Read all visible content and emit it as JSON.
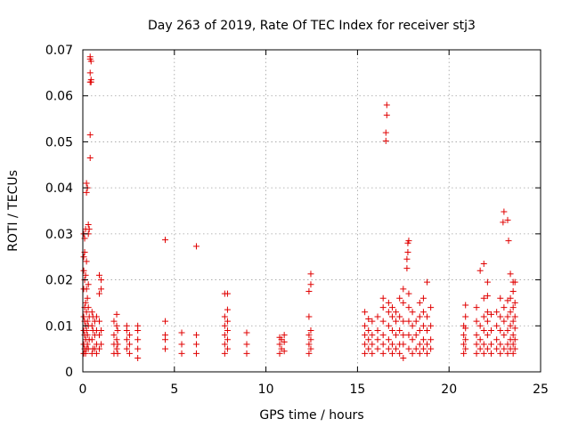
{
  "chart_data": {
    "type": "scatter",
    "title": "Day 263 of 2019, Rate Of TEC Index for receiver stj3",
    "xlabel": "GPS time / hours",
    "ylabel": "ROTI / TECUs",
    "xlim": [
      0,
      25
    ],
    "ylim": [
      0,
      0.07
    ],
    "grid": true,
    "marker": "+",
    "color": "#e00000",
    "x_ticks": [
      0,
      5,
      10,
      15,
      20,
      25
    ],
    "x_tick_labels": [
      "0",
      "5",
      "10",
      "15",
      "20",
      "25"
    ],
    "y_ticks": [
      0,
      0.01,
      0.02,
      0.03,
      0.04,
      0.05,
      0.06,
      0.07
    ],
    "y_tick_labels": [
      "0",
      "0.01",
      "0.02",
      "0.03",
      "0.04",
      "0.05",
      "0.06",
      "0.07"
    ],
    "series": [
      {
        "name": "ROTI",
        "points": [
          [
            0.05,
            0.004
          ],
          [
            0.05,
            0.006
          ],
          [
            0.05,
            0.009
          ],
          [
            0.05,
            0.012
          ],
          [
            0.05,
            0.018
          ],
          [
            0.05,
            0.022
          ],
          [
            0.05,
            0.025
          ],
          [
            0.05,
            0.03
          ],
          [
            0.1,
            0.005
          ],
          [
            0.1,
            0.008
          ],
          [
            0.1,
            0.011
          ],
          [
            0.1,
            0.014
          ],
          [
            0.1,
            0.02
          ],
          [
            0.1,
            0.026
          ],
          [
            0.1,
            0.029
          ],
          [
            0.15,
            0.004
          ],
          [
            0.15,
            0.007
          ],
          [
            0.15,
            0.01
          ],
          [
            0.15,
            0.015
          ],
          [
            0.15,
            0.021
          ],
          [
            0.15,
            0.031
          ],
          [
            0.2,
            0.005
          ],
          [
            0.2,
            0.009
          ],
          [
            0.2,
            0.013
          ],
          [
            0.2,
            0.018
          ],
          [
            0.2,
            0.024
          ],
          [
            0.2,
            0.039
          ],
          [
            0.2,
            0.041
          ],
          [
            0.25,
            0.006
          ],
          [
            0.25,
            0.008
          ],
          [
            0.25,
            0.011
          ],
          [
            0.25,
            0.016
          ],
          [
            0.25,
            0.04
          ],
          [
            0.3,
            0.005
          ],
          [
            0.3,
            0.01
          ],
          [
            0.3,
            0.014
          ],
          [
            0.3,
            0.019
          ],
          [
            0.3,
            0.03
          ],
          [
            0.3,
            0.032
          ],
          [
            0.35,
            0.007
          ],
          [
            0.35,
            0.012
          ],
          [
            0.35,
            0.031
          ],
          [
            0.4,
            0.0465
          ],
          [
            0.4,
            0.0515
          ],
          [
            0.4,
            0.063
          ],
          [
            0.4,
            0.065
          ],
          [
            0.4,
            0.068
          ],
          [
            0.4,
            0.0685
          ],
          [
            0.45,
            0.0635
          ],
          [
            0.45,
            0.0675
          ],
          [
            0.45,
            0.063
          ],
          [
            0.5,
            0.004
          ],
          [
            0.5,
            0.007
          ],
          [
            0.5,
            0.01
          ],
          [
            0.5,
            0.013
          ],
          [
            0.55,
            0.005
          ],
          [
            0.55,
            0.009
          ],
          [
            0.55,
            0.012
          ],
          [
            0.65,
            0.005
          ],
          [
            0.65,
            0.008
          ],
          [
            0.65,
            0.011
          ],
          [
            0.75,
            0.004
          ],
          [
            0.75,
            0.006
          ],
          [
            0.75,
            0.009
          ],
          [
            0.75,
            0.012
          ],
          [
            0.9,
            0.005
          ],
          [
            0.9,
            0.008
          ],
          [
            0.9,
            0.011
          ],
          [
            0.9,
            0.017
          ],
          [
            0.9,
            0.021
          ],
          [
            1.0,
            0.006
          ],
          [
            1.0,
            0.009
          ],
          [
            1.0,
            0.018
          ],
          [
            1.0,
            0.02
          ],
          [
            1.7,
            0.004
          ],
          [
            1.7,
            0.006
          ],
          [
            1.7,
            0.008
          ],
          [
            1.7,
            0.011
          ],
          [
            1.85,
            0.005
          ],
          [
            1.85,
            0.007
          ],
          [
            1.85,
            0.01
          ],
          [
            1.85,
            0.0125
          ],
          [
            1.9,
            0.004
          ],
          [
            1.9,
            0.006
          ],
          [
            1.9,
            0.009
          ],
          [
            2.4,
            0.005
          ],
          [
            2.4,
            0.007
          ],
          [
            2.4,
            0.009
          ],
          [
            2.4,
            0.01
          ],
          [
            2.55,
            0.004
          ],
          [
            2.55,
            0.006
          ],
          [
            2.55,
            0.008
          ],
          [
            3.0,
            0.003
          ],
          [
            3.0,
            0.005
          ],
          [
            3.0,
            0.007
          ],
          [
            3.0,
            0.009
          ],
          [
            3.0,
            0.01
          ],
          [
            4.5,
            0.005
          ],
          [
            4.5,
            0.007
          ],
          [
            4.5,
            0.008
          ],
          [
            4.5,
            0.011
          ],
          [
            4.5,
            0.0287
          ],
          [
            5.4,
            0.004
          ],
          [
            5.4,
            0.006
          ],
          [
            5.4,
            0.0085
          ],
          [
            6.2,
            0.004
          ],
          [
            6.2,
            0.006
          ],
          [
            6.2,
            0.008
          ],
          [
            6.2,
            0.0273
          ],
          [
            7.75,
            0.004
          ],
          [
            7.75,
            0.006
          ],
          [
            7.75,
            0.008
          ],
          [
            7.75,
            0.01
          ],
          [
            7.75,
            0.012
          ],
          [
            7.75,
            0.017
          ],
          [
            7.9,
            0.005
          ],
          [
            7.9,
            0.007
          ],
          [
            7.9,
            0.009
          ],
          [
            7.9,
            0.011
          ],
          [
            7.9,
            0.0135
          ],
          [
            7.9,
            0.017
          ],
          [
            8.95,
            0.004
          ],
          [
            8.95,
            0.006
          ],
          [
            8.95,
            0.0085
          ],
          [
            10.75,
            0.004
          ],
          [
            10.75,
            0.006
          ],
          [
            10.75,
            0.0075
          ],
          [
            10.85,
            0.005
          ],
          [
            10.85,
            0.007
          ],
          [
            11.0,
            0.0045
          ],
          [
            11.0,
            0.0065
          ],
          [
            11.0,
            0.008
          ],
          [
            12.35,
            0.004
          ],
          [
            12.35,
            0.006
          ],
          [
            12.35,
            0.008
          ],
          [
            12.35,
            0.012
          ],
          [
            12.35,
            0.0175
          ],
          [
            12.45,
            0.005
          ],
          [
            12.45,
            0.007
          ],
          [
            12.45,
            0.009
          ],
          [
            12.45,
            0.019
          ],
          [
            12.45,
            0.0213
          ],
          [
            15.4,
            0.004
          ],
          [
            15.4,
            0.006
          ],
          [
            15.4,
            0.008
          ],
          [
            15.4,
            0.01
          ],
          [
            15.4,
            0.013
          ],
          [
            15.6,
            0.005
          ],
          [
            15.6,
            0.007
          ],
          [
            15.6,
            0.009
          ],
          [
            15.6,
            0.0115
          ],
          [
            15.8,
            0.004
          ],
          [
            15.8,
            0.006
          ],
          [
            15.8,
            0.008
          ],
          [
            15.8,
            0.011
          ],
          [
            16.1,
            0.005
          ],
          [
            16.1,
            0.007
          ],
          [
            16.1,
            0.009
          ],
          [
            16.1,
            0.012
          ],
          [
            16.4,
            0.004
          ],
          [
            16.4,
            0.006
          ],
          [
            16.4,
            0.008
          ],
          [
            16.4,
            0.011
          ],
          [
            16.4,
            0.014
          ],
          [
            16.4,
            0.016
          ],
          [
            16.55,
            0.0502
          ],
          [
            16.55,
            0.052
          ],
          [
            16.6,
            0.0558
          ],
          [
            16.6,
            0.058
          ],
          [
            16.7,
            0.005
          ],
          [
            16.7,
            0.007
          ],
          [
            16.7,
            0.01
          ],
          [
            16.7,
            0.013
          ],
          [
            16.7,
            0.015
          ],
          [
            16.9,
            0.004
          ],
          [
            16.9,
            0.006
          ],
          [
            16.9,
            0.009
          ],
          [
            16.9,
            0.012
          ],
          [
            16.9,
            0.014
          ],
          [
            17.1,
            0.005
          ],
          [
            17.1,
            0.008
          ],
          [
            17.1,
            0.011
          ],
          [
            17.1,
            0.013
          ],
          [
            17.3,
            0.004
          ],
          [
            17.3,
            0.006
          ],
          [
            17.3,
            0.009
          ],
          [
            17.3,
            0.012
          ],
          [
            17.3,
            0.016
          ],
          [
            17.5,
            0.003
          ],
          [
            17.5,
            0.006
          ],
          [
            17.5,
            0.008
          ],
          [
            17.5,
            0.011
          ],
          [
            17.5,
            0.015
          ],
          [
            17.5,
            0.018
          ],
          [
            17.7,
            0.0225
          ],
          [
            17.7,
            0.0245
          ],
          [
            17.75,
            0.028
          ],
          [
            17.8,
            0.0285
          ],
          [
            17.75,
            0.026
          ],
          [
            17.8,
            0.005
          ],
          [
            17.8,
            0.008
          ],
          [
            17.8,
            0.011
          ],
          [
            17.8,
            0.014
          ],
          [
            17.8,
            0.017
          ],
          [
            18.0,
            0.004
          ],
          [
            18.0,
            0.007
          ],
          [
            18.0,
            0.01
          ],
          [
            18.0,
            0.013
          ],
          [
            18.2,
            0.005
          ],
          [
            18.2,
            0.008
          ],
          [
            18.2,
            0.011
          ],
          [
            18.4,
            0.004
          ],
          [
            18.4,
            0.006
          ],
          [
            18.4,
            0.009
          ],
          [
            18.4,
            0.012
          ],
          [
            18.4,
            0.015
          ],
          [
            18.6,
            0.005
          ],
          [
            18.6,
            0.007
          ],
          [
            18.6,
            0.01
          ],
          [
            18.6,
            0.013
          ],
          [
            18.6,
            0.016
          ],
          [
            18.8,
            0.004
          ],
          [
            18.8,
            0.006
          ],
          [
            18.8,
            0.009
          ],
          [
            18.8,
            0.012
          ],
          [
            18.8,
            0.0195
          ],
          [
            19.0,
            0.005
          ],
          [
            19.0,
            0.007
          ],
          [
            19.0,
            0.01
          ],
          [
            19.0,
            0.014
          ],
          [
            20.8,
            0.004
          ],
          [
            20.8,
            0.006
          ],
          [
            20.8,
            0.008
          ],
          [
            20.8,
            0.01
          ],
          [
            20.9,
            0.005
          ],
          [
            20.9,
            0.007
          ],
          [
            20.9,
            0.0095
          ],
          [
            20.9,
            0.012
          ],
          [
            20.9,
            0.0145
          ],
          [
            21.5,
            0.004
          ],
          [
            21.5,
            0.006
          ],
          [
            21.5,
            0.008
          ],
          [
            21.5,
            0.011
          ],
          [
            21.5,
            0.014
          ],
          [
            21.7,
            0.005
          ],
          [
            21.7,
            0.007
          ],
          [
            21.7,
            0.01
          ],
          [
            21.7,
            0.022
          ],
          [
            21.9,
            0.004
          ],
          [
            21.9,
            0.006
          ],
          [
            21.9,
            0.009
          ],
          [
            21.9,
            0.012
          ],
          [
            21.9,
            0.016
          ],
          [
            21.9,
            0.0235
          ],
          [
            22.1,
            0.005
          ],
          [
            22.1,
            0.008
          ],
          [
            22.1,
            0.011
          ],
          [
            22.1,
            0.013
          ],
          [
            22.1,
            0.0165
          ],
          [
            22.1,
            0.0195
          ],
          [
            22.3,
            0.004
          ],
          [
            22.3,
            0.006
          ],
          [
            22.3,
            0.009
          ],
          [
            22.3,
            0.0125
          ],
          [
            22.6,
            0.005
          ],
          [
            22.6,
            0.007
          ],
          [
            22.6,
            0.01
          ],
          [
            22.6,
            0.013
          ],
          [
            22.8,
            0.004
          ],
          [
            22.8,
            0.006
          ],
          [
            22.8,
            0.009
          ],
          [
            22.8,
            0.012
          ],
          [
            22.8,
            0.016
          ],
          [
            22.95,
            0.0325
          ],
          [
            23.0,
            0.0348
          ],
          [
            23.0,
            0.005
          ],
          [
            23.0,
            0.008
          ],
          [
            23.0,
            0.011
          ],
          [
            23.0,
            0.014
          ],
          [
            23.2,
            0.004
          ],
          [
            23.2,
            0.006
          ],
          [
            23.2,
            0.009
          ],
          [
            23.2,
            0.012
          ],
          [
            23.2,
            0.0155
          ],
          [
            23.2,
            0.033
          ],
          [
            23.25,
            0.0285
          ],
          [
            23.35,
            0.005
          ],
          [
            23.35,
            0.007
          ],
          [
            23.35,
            0.01
          ],
          [
            23.35,
            0.013
          ],
          [
            23.35,
            0.016
          ],
          [
            23.35,
            0.0213
          ],
          [
            23.5,
            0.004
          ],
          [
            23.5,
            0.006
          ],
          [
            23.5,
            0.008
          ],
          [
            23.5,
            0.011
          ],
          [
            23.5,
            0.014
          ],
          [
            23.5,
            0.0175
          ],
          [
            23.5,
            0.0195
          ],
          [
            23.6,
            0.005
          ],
          [
            23.6,
            0.007
          ],
          [
            23.6,
            0.0095
          ],
          [
            23.6,
            0.012
          ],
          [
            23.6,
            0.015
          ],
          [
            23.6,
            0.0195
          ]
        ]
      }
    ]
  }
}
